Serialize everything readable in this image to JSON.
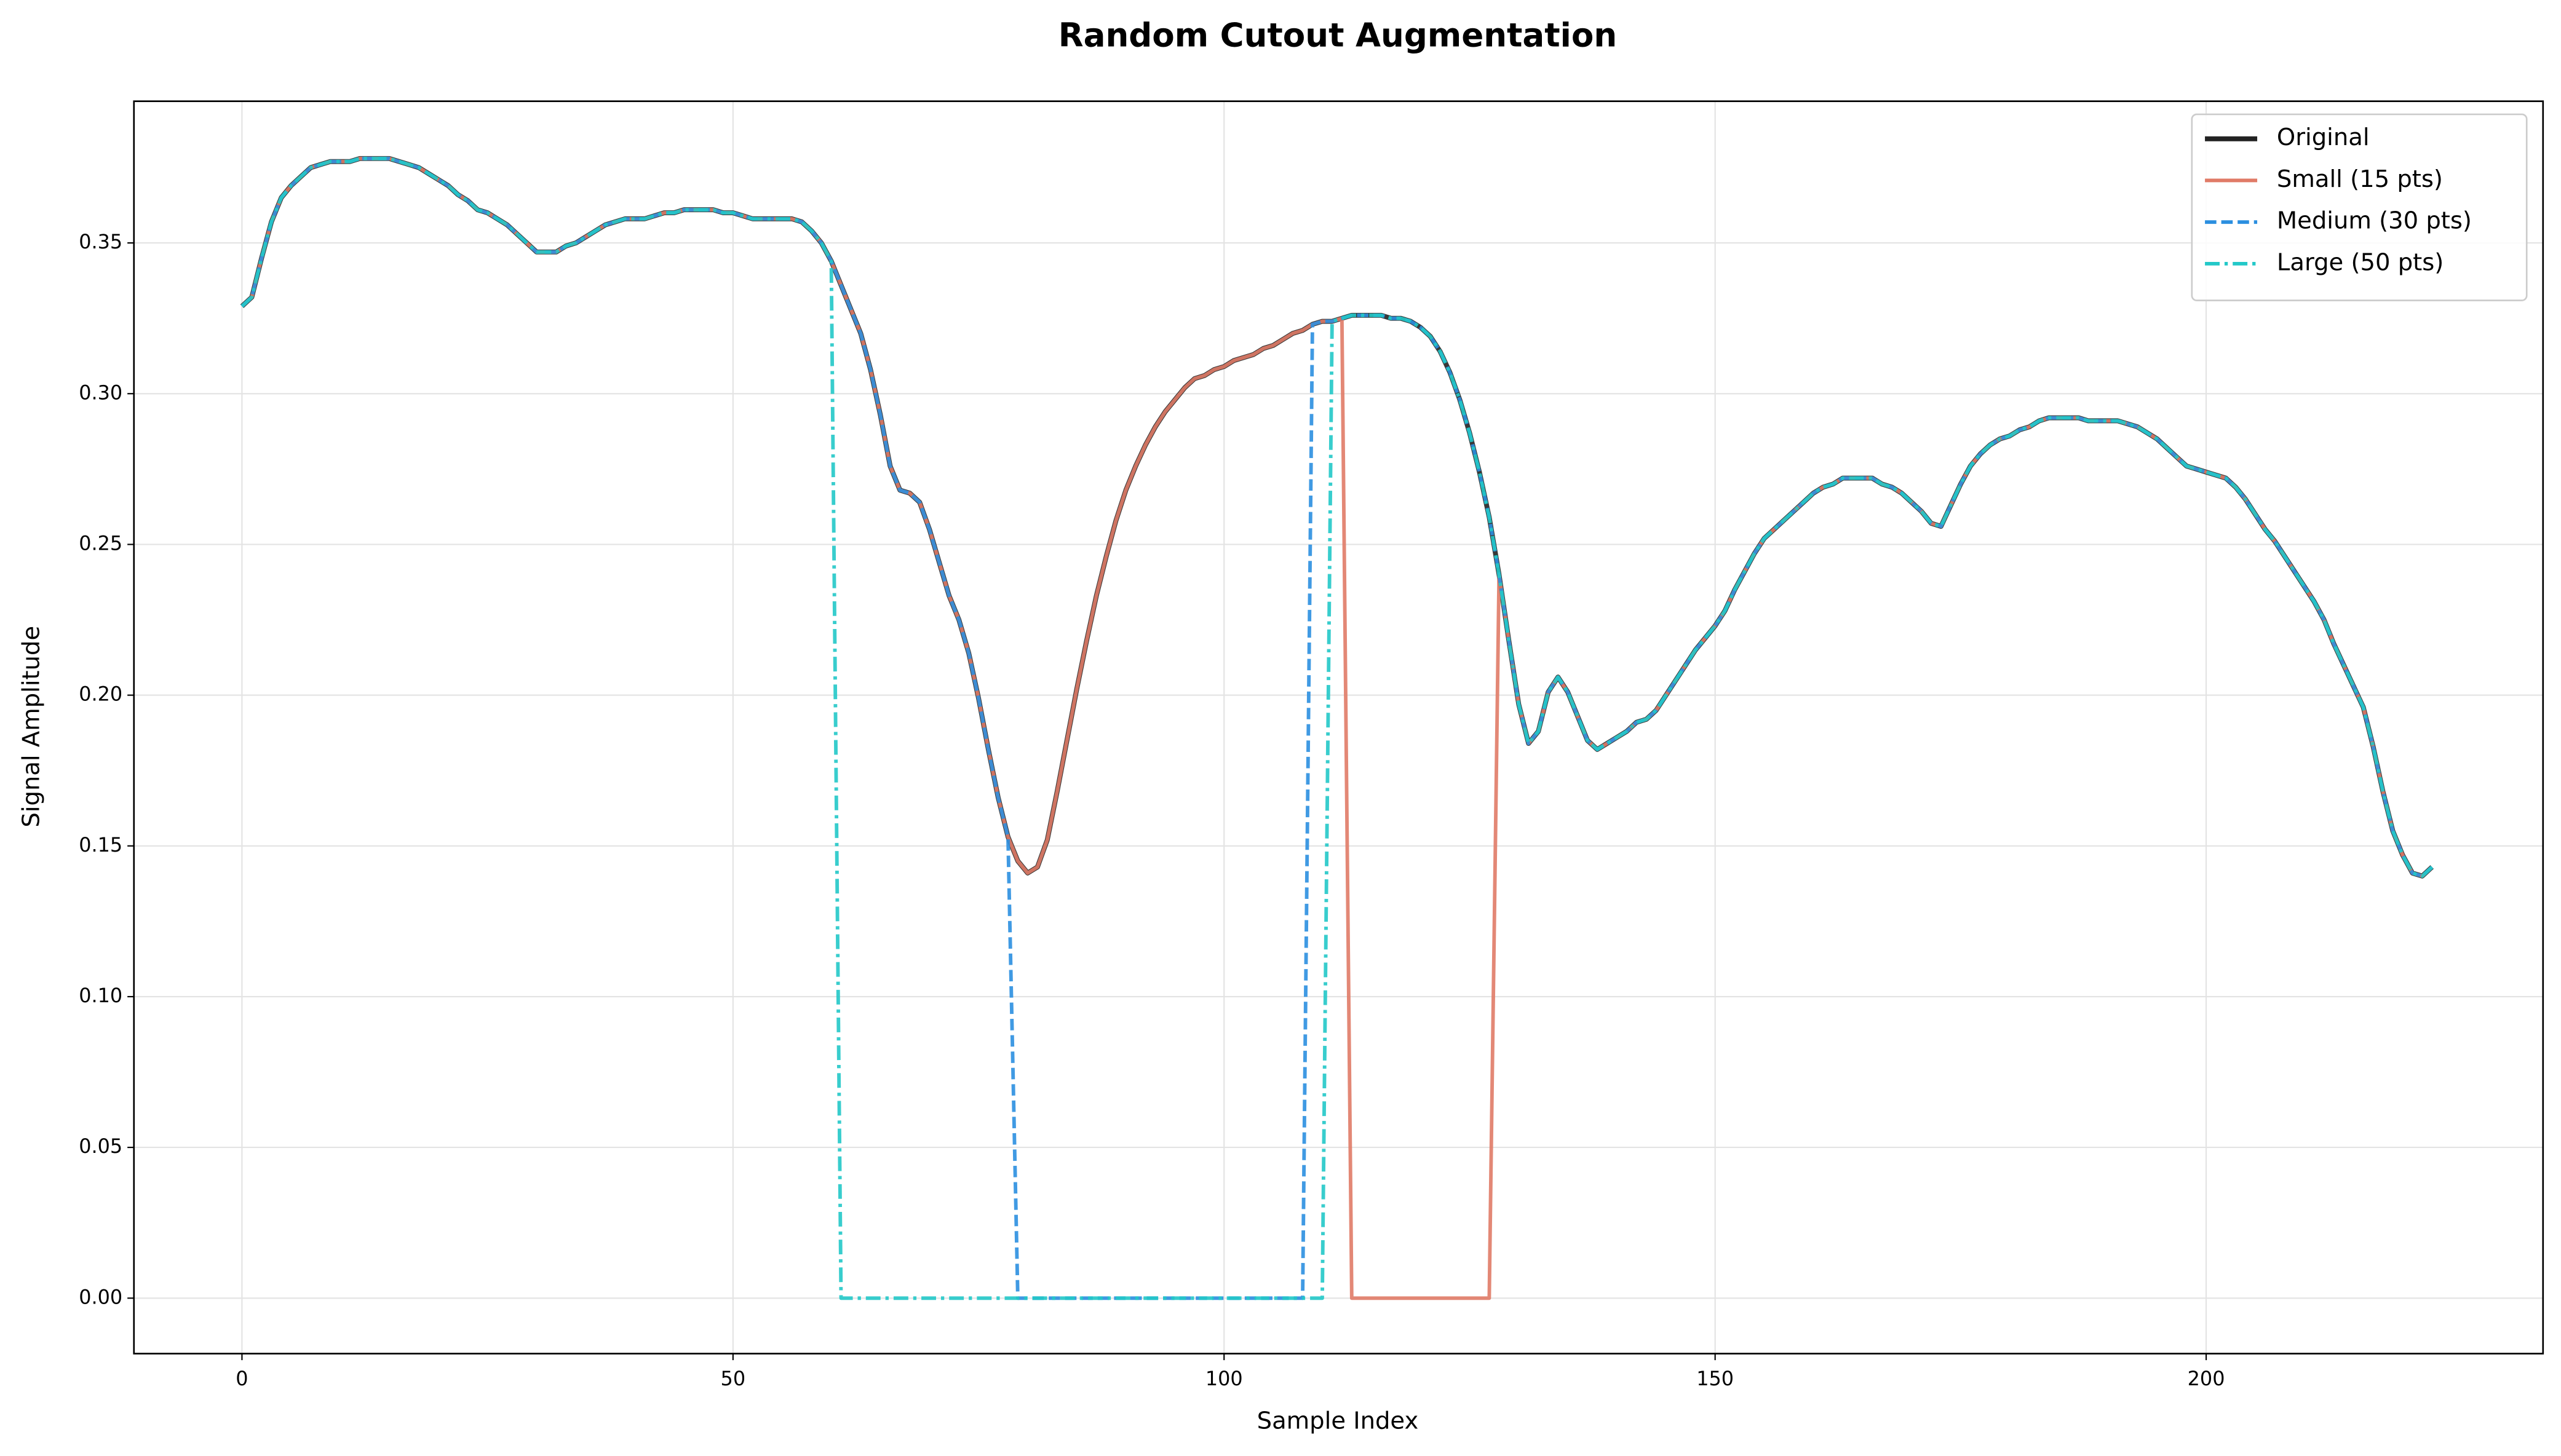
{
  "chart_data": {
    "type": "line",
    "title": "Random Cutout Augmentation",
    "xlabel": "Sample Index",
    "ylabel": "Signal Amplitude",
    "x": [
      0,
      1,
      2,
      3,
      4,
      5,
      6,
      7,
      8,
      9,
      10,
      11,
      12,
      13,
      14,
      15,
      16,
      17,
      18,
      19,
      20,
      21,
      22,
      23,
      24,
      25,
      26,
      27,
      28,
      29,
      30,
      31,
      32,
      33,
      34,
      35,
      36,
      37,
      38,
      39,
      40,
      41,
      42,
      43,
      44,
      45,
      46,
      47,
      48,
      49,
      50,
      51,
      52,
      53,
      54,
      55,
      56,
      57,
      58,
      59,
      60,
      61,
      62,
      63,
      64,
      65,
      66,
      67,
      68,
      69,
      70,
      71,
      72,
      73,
      74,
      75,
      76,
      77,
      78,
      79,
      80,
      81,
      82,
      83,
      84,
      85,
      86,
      87,
      88,
      89,
      90,
      91,
      92,
      93,
      94,
      95,
      96,
      97,
      98,
      99,
      100,
      101,
      102,
      103,
      104,
      105,
      106,
      107,
      108,
      109,
      110,
      111,
      112,
      113,
      114,
      115,
      116,
      117,
      118,
      119,
      120,
      121,
      122,
      123,
      124,
      125,
      126,
      127,
      128,
      129,
      130,
      131,
      132,
      133,
      134,
      135,
      136,
      137,
      138,
      139,
      140,
      141,
      142,
      143,
      144,
      145,
      146,
      147,
      148,
      149,
      150,
      151,
      152,
      153,
      154,
      155,
      156,
      157,
      158,
      159,
      160,
      161,
      162,
      163,
      164,
      165,
      166,
      167,
      168,
      169,
      170,
      171,
      172,
      173,
      174,
      175,
      176,
      177,
      178,
      179,
      180,
      181,
      182,
      183,
      184,
      185,
      186,
      187,
      188,
      189,
      190,
      191,
      192,
      193,
      194,
      195,
      196,
      197,
      198,
      199,
      200,
      201,
      202,
      203,
      204,
      205,
      206,
      207,
      208,
      209,
      210,
      211,
      212,
      213,
      214,
      215,
      216,
      217,
      218,
      219,
      220,
      221,
      222,
      223
    ],
    "series": [
      {
        "name": "Original",
        "color": "#222222",
        "linestyle": "solid",
        "width": 3,
        "values": [
          0.329,
          0.332,
          0.345,
          0.357,
          0.365,
          0.369,
          0.372,
          0.375,
          0.376,
          0.377,
          0.377,
          0.377,
          0.378,
          0.378,
          0.378,
          0.378,
          0.377,
          0.376,
          0.375,
          0.373,
          0.371,
          0.369,
          0.366,
          0.364,
          0.361,
          0.36,
          0.358,
          0.356,
          0.353,
          0.35,
          0.347,
          0.347,
          0.347,
          0.349,
          0.35,
          0.352,
          0.354,
          0.356,
          0.357,
          0.358,
          0.358,
          0.358,
          0.359,
          0.36,
          0.36,
          0.361,
          0.361,
          0.361,
          0.361,
          0.36,
          0.36,
          0.359,
          0.358,
          0.358,
          0.358,
          0.358,
          0.358,
          0.357,
          0.354,
          0.35,
          0.344,
          0.336,
          0.328,
          0.32,
          0.308,
          0.293,
          0.276,
          0.268,
          0.267,
          0.264,
          0.255,
          0.244,
          0.233,
          0.225,
          0.214,
          0.199,
          0.182,
          0.166,
          0.153,
          0.145,
          0.141,
          0.143,
          0.152,
          0.168,
          0.185,
          0.202,
          0.218,
          0.233,
          0.246,
          0.258,
          0.268,
          0.276,
          0.283,
          0.289,
          0.294,
          0.298,
          0.302,
          0.305,
          0.306,
          0.308,
          0.309,
          0.311,
          0.312,
          0.313,
          0.315,
          0.316,
          0.318,
          0.32,
          0.321,
          0.323,
          0.324,
          0.324,
          0.325,
          0.326,
          0.326,
          0.326,
          0.326,
          0.325,
          0.325,
          0.324,
          0.322,
          0.319,
          0.314,
          0.307,
          0.298,
          0.287,
          0.274,
          0.259,
          0.24,
          0.218,
          0.197,
          0.184,
          0.188,
          0.201,
          0.206,
          0.201,
          0.193,
          0.185,
          0.182,
          0.184,
          0.186,
          0.188,
          0.191,
          0.192,
          0.195,
          0.2,
          0.205,
          0.21,
          0.215,
          0.219,
          0.223,
          0.228,
          0.235,
          0.241,
          0.247,
          0.252,
          0.255,
          0.258,
          0.261,
          0.264,
          0.267,
          0.269,
          0.27,
          0.272,
          0.272,
          0.272,
          0.272,
          0.27,
          0.269,
          0.267,
          0.264,
          0.261,
          0.257,
          0.256,
          0.263,
          0.27,
          0.276,
          0.28,
          0.283,
          0.285,
          0.286,
          0.288,
          0.289,
          0.291,
          0.292,
          0.292,
          0.292,
          0.292,
          0.291,
          0.291,
          0.291,
          0.291,
          0.29,
          0.289,
          0.287,
          0.285,
          0.282,
          0.279,
          0.276,
          0.275,
          0.274,
          0.273,
          0.272,
          0.269,
          0.265,
          0.26,
          0.255,
          0.251,
          0.246,
          0.241,
          0.236,
          0.231,
          0.225,
          0.217,
          0.21,
          0.203,
          0.196,
          0.183,
          0.168,
          0.155,
          0.147,
          0.141,
          0.14,
          0.143
        ]
      },
      {
        "name": "Small (15 pts)",
        "color": "#e07b67",
        "linestyle": "solid",
        "width": 2.2,
        "values": [
          0.329,
          0.332,
          0.345,
          0.357,
          0.365,
          0.369,
          0.372,
          0.375,
          0.376,
          0.377,
          0.377,
          0.377,
          0.378,
          0.378,
          0.378,
          0.378,
          0.377,
          0.376,
          0.375,
          0.373,
          0.371,
          0.369,
          0.366,
          0.364,
          0.361,
          0.36,
          0.358,
          0.356,
          0.353,
          0.35,
          0.347,
          0.347,
          0.347,
          0.349,
          0.35,
          0.352,
          0.354,
          0.356,
          0.357,
          0.358,
          0.358,
          0.358,
          0.359,
          0.36,
          0.36,
          0.361,
          0.361,
          0.361,
          0.361,
          0.36,
          0.36,
          0.359,
          0.358,
          0.358,
          0.358,
          0.358,
          0.358,
          0.357,
          0.354,
          0.35,
          0.344,
          0.336,
          0.328,
          0.32,
          0.308,
          0.293,
          0.276,
          0.268,
          0.267,
          0.264,
          0.255,
          0.244,
          0.233,
          0.225,
          0.214,
          0.199,
          0.182,
          0.166,
          0.153,
          0.145,
          0.141,
          0.143,
          0.152,
          0.168,
          0.185,
          0.202,
          0.218,
          0.233,
          0.246,
          0.258,
          0.268,
          0.276,
          0.283,
          0.289,
          0.294,
          0.298,
          0.302,
          0.305,
          0.306,
          0.308,
          0.309,
          0.311,
          0.312,
          0.313,
          0.315,
          0.316,
          0.318,
          0.32,
          0.321,
          0.323,
          0.324,
          0.324,
          0.325,
          0,
          0,
          0,
          0,
          0,
          0,
          0,
          0,
          0,
          0,
          0,
          0,
          0,
          0,
          0,
          0.24,
          0.218,
          0.197,
          0.184,
          0.188,
          0.201,
          0.206,
          0.201,
          0.193,
          0.185,
          0.182,
          0.184,
          0.186,
          0.188,
          0.191,
          0.192,
          0.195,
          0.2,
          0.205,
          0.21,
          0.215,
          0.219,
          0.223,
          0.228,
          0.235,
          0.241,
          0.247,
          0.252,
          0.255,
          0.258,
          0.261,
          0.264,
          0.267,
          0.269,
          0.27,
          0.272,
          0.272,
          0.272,
          0.272,
          0.27,
          0.269,
          0.267,
          0.264,
          0.261,
          0.257,
          0.256,
          0.263,
          0.27,
          0.276,
          0.28,
          0.283,
          0.285,
          0.286,
          0.288,
          0.289,
          0.291,
          0.292,
          0.292,
          0.292,
          0.292,
          0.291,
          0.291,
          0.291,
          0.291,
          0.29,
          0.289,
          0.287,
          0.285,
          0.282,
          0.279,
          0.276,
          0.275,
          0.274,
          0.273,
          0.272,
          0.269,
          0.265,
          0.26,
          0.255,
          0.251,
          0.246,
          0.241,
          0.236,
          0.231,
          0.225,
          0.217,
          0.21,
          0.203,
          0.196,
          0.183,
          0.168,
          0.155,
          0.147,
          0.141,
          0.14,
          0.143
        ]
      },
      {
        "name": "Medium (30 pts)",
        "color": "#2b8fe0",
        "linestyle": "dashed",
        "width": 2.2,
        "values": [
          0.329,
          0.332,
          0.345,
          0.357,
          0.365,
          0.369,
          0.372,
          0.375,
          0.376,
          0.377,
          0.377,
          0.377,
          0.378,
          0.378,
          0.378,
          0.378,
          0.377,
          0.376,
          0.375,
          0.373,
          0.371,
          0.369,
          0.366,
          0.364,
          0.361,
          0.36,
          0.358,
          0.356,
          0.353,
          0.35,
          0.347,
          0.347,
          0.347,
          0.349,
          0.35,
          0.352,
          0.354,
          0.356,
          0.357,
          0.358,
          0.358,
          0.358,
          0.359,
          0.36,
          0.36,
          0.361,
          0.361,
          0.361,
          0.361,
          0.36,
          0.36,
          0.359,
          0.358,
          0.358,
          0.358,
          0.358,
          0.358,
          0.357,
          0.354,
          0.35,
          0.344,
          0.336,
          0.328,
          0.32,
          0.308,
          0.293,
          0.276,
          0.268,
          0.267,
          0.264,
          0.255,
          0.244,
          0.233,
          0.225,
          0.214,
          0.199,
          0.182,
          0.166,
          0.153,
          0,
          0,
          0,
          0,
          0,
          0,
          0,
          0,
          0,
          0,
          0,
          0,
          0,
          0,
          0,
          0,
          0,
          0,
          0,
          0,
          0,
          0,
          0,
          0,
          0,
          0,
          0,
          0,
          0,
          0,
          0.323,
          0.324,
          0.324,
          0.325,
          0.326,
          0.326,
          0.326,
          0.326,
          0.325,
          0.325,
          0.324,
          0.322,
          0.319,
          0.314,
          0.307,
          0.298,
          0.287,
          0.274,
          0.259,
          0.24,
          0.218,
          0.197,
          0.184,
          0.188,
          0.201,
          0.206,
          0.201,
          0.193,
          0.185,
          0.182,
          0.184,
          0.186,
          0.188,
          0.191,
          0.192,
          0.195,
          0.2,
          0.205,
          0.21,
          0.215,
          0.219,
          0.223,
          0.228,
          0.235,
          0.241,
          0.247,
          0.252,
          0.255,
          0.258,
          0.261,
          0.264,
          0.267,
          0.269,
          0.27,
          0.272,
          0.272,
          0.272,
          0.272,
          0.27,
          0.269,
          0.267,
          0.264,
          0.261,
          0.257,
          0.256,
          0.263,
          0.27,
          0.276,
          0.28,
          0.283,
          0.285,
          0.286,
          0.288,
          0.289,
          0.291,
          0.292,
          0.292,
          0.292,
          0.292,
          0.291,
          0.291,
          0.291,
          0.291,
          0.29,
          0.289,
          0.287,
          0.285,
          0.282,
          0.279,
          0.276,
          0.275,
          0.274,
          0.273,
          0.272,
          0.269,
          0.265,
          0.26,
          0.255,
          0.251,
          0.246,
          0.241,
          0.236,
          0.231,
          0.225,
          0.217,
          0.21,
          0.203,
          0.196,
          0.183,
          0.168,
          0.155,
          0.147,
          0.141,
          0.14,
          0.143
        ]
      },
      {
        "name": "Large (50 pts)",
        "color": "#22c8c8",
        "linestyle": "dashdot",
        "width": 2.2,
        "values": [
          0.329,
          0.332,
          0.345,
          0.357,
          0.365,
          0.369,
          0.372,
          0.375,
          0.376,
          0.377,
          0.377,
          0.377,
          0.378,
          0.378,
          0.378,
          0.378,
          0.377,
          0.376,
          0.375,
          0.373,
          0.371,
          0.369,
          0.366,
          0.364,
          0.361,
          0.36,
          0.358,
          0.356,
          0.353,
          0.35,
          0.347,
          0.347,
          0.347,
          0.349,
          0.35,
          0.352,
          0.354,
          0.356,
          0.357,
          0.358,
          0.358,
          0.358,
          0.359,
          0.36,
          0.36,
          0.361,
          0.361,
          0.361,
          0.361,
          0.36,
          0.36,
          0.359,
          0.358,
          0.358,
          0.358,
          0.358,
          0.358,
          0.357,
          0.354,
          0.35,
          0.344,
          0,
          0,
          0,
          0,
          0,
          0,
          0,
          0,
          0,
          0,
          0,
          0,
          0,
          0,
          0,
          0,
          0,
          0,
          0,
          0,
          0,
          0,
          0,
          0,
          0,
          0,
          0,
          0,
          0,
          0,
          0,
          0,
          0,
          0,
          0,
          0,
          0,
          0,
          0,
          0,
          0,
          0,
          0,
          0,
          0,
          0,
          0,
          0,
          0,
          0,
          0.324,
          0.325,
          0.326,
          0.326,
          0.326,
          0.326,
          0.325,
          0.325,
          0.324,
          0.322,
          0.319,
          0.314,
          0.307,
          0.298,
          0.287,
          0.274,
          0.259,
          0.24,
          0.218,
          0.197,
          0.184,
          0.188,
          0.201,
          0.206,
          0.201,
          0.193,
          0.185,
          0.182,
          0.184,
          0.186,
          0.188,
          0.191,
          0.192,
          0.195,
          0.2,
          0.205,
          0.21,
          0.215,
          0.219,
          0.223,
          0.228,
          0.235,
          0.241,
          0.247,
          0.252,
          0.255,
          0.258,
          0.261,
          0.264,
          0.267,
          0.269,
          0.27,
          0.272,
          0.272,
          0.272,
          0.272,
          0.27,
          0.269,
          0.267,
          0.264,
          0.261,
          0.257,
          0.256,
          0.263,
          0.27,
          0.276,
          0.28,
          0.283,
          0.285,
          0.286,
          0.288,
          0.289,
          0.291,
          0.292,
          0.292,
          0.292,
          0.292,
          0.291,
          0.291,
          0.291,
          0.291,
          0.29,
          0.289,
          0.287,
          0.285,
          0.282,
          0.279,
          0.276,
          0.275,
          0.274,
          0.273,
          0.272,
          0.269,
          0.265,
          0.26,
          0.255,
          0.251,
          0.246,
          0.241,
          0.236,
          0.231,
          0.225,
          0.217,
          0.21,
          0.203,
          0.196,
          0.183,
          0.168,
          0.155,
          0.147,
          0.141,
          0.14,
          0.143
        ]
      }
    ],
    "xlim": [
      -11,
      234.3
    ],
    "ylim": [
      -0.0184,
      0.397
    ],
    "xticks": [
      0,
      50,
      100,
      150,
      200
    ],
    "yticks": [
      {
        "value": 0,
        "label": "0.00"
      },
      0.05,
      {
        "value": 0.1,
        "label": "0.10"
      },
      0.15,
      {
        "value": 0.2,
        "label": "0.20"
      },
      0.25,
      {
        "value": 0.3,
        "label": "0.30"
      },
      0.35
    ],
    "grid": true,
    "legend": "upper right"
  }
}
